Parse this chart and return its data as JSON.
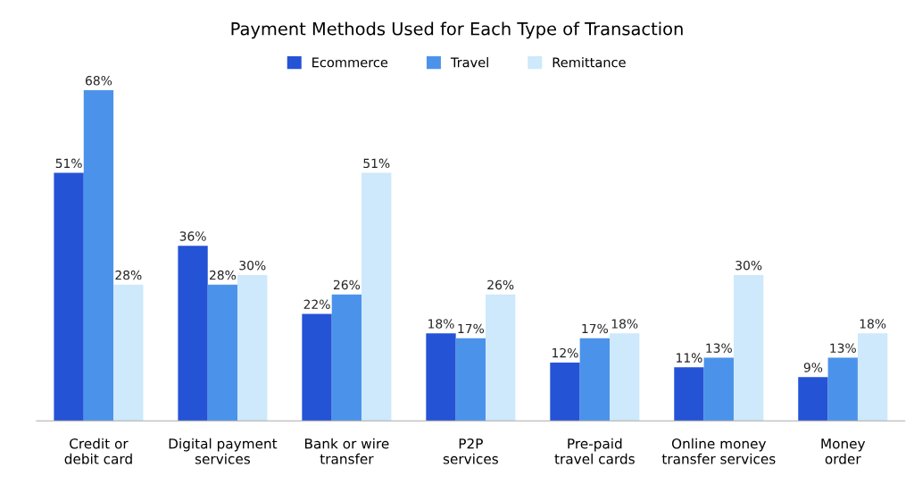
{
  "chart_data": {
    "type": "bar",
    "title": "Payment Methods Used for Each Type of Transaction",
    "categories": [
      "Credit or\ndebit card",
      "Digital payment\nservices",
      "Bank or wire\ntransfer",
      "P2P\nservices",
      "Pre-paid\ntravel cards",
      "Online money\ntransfer services",
      "Money\norder"
    ],
    "series": [
      {
        "name": "Ecommerce",
        "color": "#2553d6",
        "values": [
          51,
          36,
          22,
          18,
          12,
          11,
          9
        ],
        "value_labels": [
          "51%",
          "36%",
          "22%",
          "18%",
          "12%",
          "11%",
          "9%"
        ]
      },
      {
        "name": "Travel",
        "color": "#4b93ea",
        "values": [
          68,
          28,
          26,
          17,
          17,
          13,
          13
        ],
        "value_labels": [
          "68%",
          "28%",
          "26%",
          "17%",
          "17%",
          "13%",
          "13%"
        ]
      },
      {
        "name": "Remittance",
        "color": "#cde9fb",
        "values": [
          28,
          30,
          51,
          26,
          18,
          30,
          18
        ],
        "value_labels": [
          "28%",
          "30%",
          "51%",
          "26%",
          "18%",
          "30%",
          "18%"
        ]
      }
    ],
    "tick_labels": "x",
    "grid": false,
    "legend": "top"
  }
}
